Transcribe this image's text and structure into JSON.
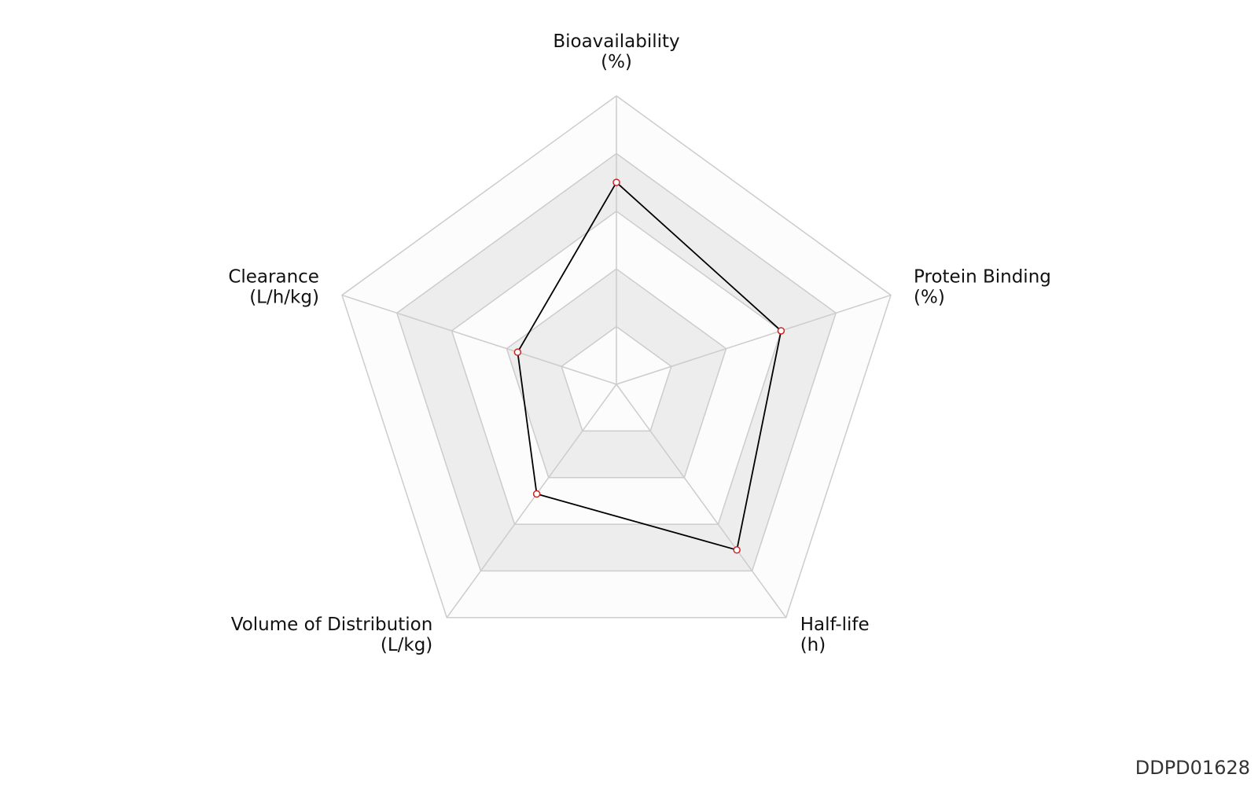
{
  "chart_data": {
    "type": "radar",
    "categories": [
      "Bioavailability",
      "Protein Binding",
      "Half-life",
      "Volume of Distribution",
      "Clearance"
    ],
    "units": [
      "(%)",
      "(%)",
      "(h)",
      "(L/kg)",
      "(L/h/kg)"
    ],
    "series": [
      {
        "color": "#000000",
        "marker_color": "#cc2222",
        "values": [
          0.7,
          0.6,
          0.71,
          0.47,
          0.36
        ]
      }
    ],
    "rlim": [
      0,
      1
    ],
    "rticks": [
      0.2,
      0.4,
      0.6,
      0.8,
      1.0
    ],
    "band_colors": [
      "#fcfcfc",
      "#ededed"
    ],
    "grid_color": "#cccccc"
  },
  "watermark": "DDPD01628"
}
